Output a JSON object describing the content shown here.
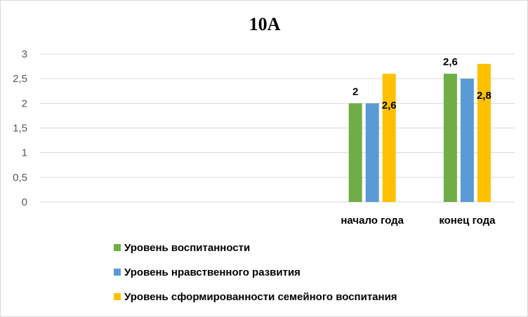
{
  "chart_data": {
    "type": "bar",
    "title": "10А",
    "categories": [
      "",
      "",
      "",
      "начало года",
      "конец года"
    ],
    "series": [
      {
        "name": "Уровень воспитанности",
        "color": "#70ad47",
        "values": [
          null,
          null,
          null,
          2,
          2.6
        ]
      },
      {
        "name": "Уровень нравственного развития",
        "color": "#5b9bd5",
        "values": [
          null,
          null,
          null,
          2,
          2.5
        ]
      },
      {
        "name": "Уровень сформированности семейного воспитания",
        "color": "#ffc000",
        "values": [
          null,
          null,
          null,
          2.6,
          2.8
        ]
      }
    ],
    "data_labels": [
      {
        "category": "начало года",
        "series": "Уровень воспитанности",
        "text": "2"
      },
      {
        "category": "начало года",
        "series": "Уровень сформированности семейного воспитания",
        "text": "2,6"
      },
      {
        "category": "конец года",
        "series": "Уровень воспитанности",
        "text": "2,6"
      },
      {
        "category": "конец года",
        "series": "Уровень сформированности семейного воспитания",
        "text": "2,8"
      }
    ],
    "ylim": [
      0,
      3
    ],
    "yticks": [
      "0",
      "0,5",
      "1",
      "1,5",
      "2",
      "2,5",
      "3"
    ],
    "grid": true,
    "gridline_color": "#d9d9d9",
    "legend_position": "bottom-left"
  }
}
